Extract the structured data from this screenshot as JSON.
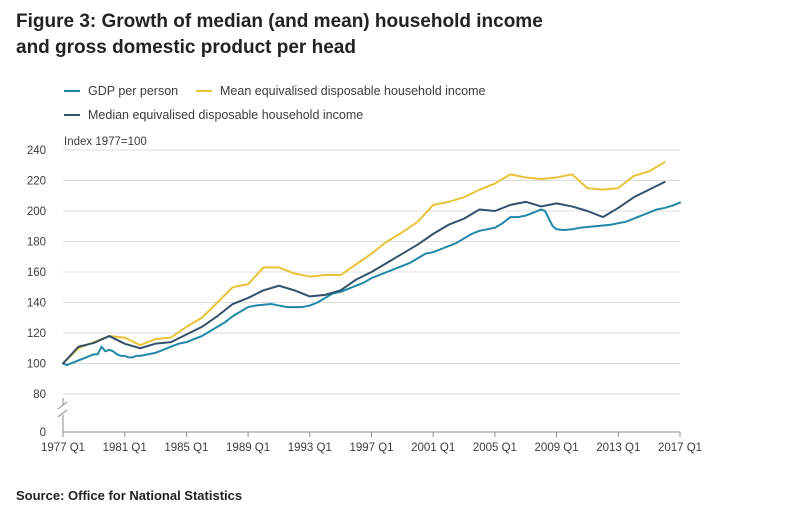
{
  "title_line1": "Figure 3: Growth of median (and mean) household income",
  "title_line2": "and gross domestic product per head",
  "source": "Source: Office for National Statistics",
  "colors": {
    "gdp": "#1f87a8",
    "mean": "#e8c239",
    "median": "#34516b",
    "grid": "#dcdcdc",
    "axis": "#8c8c8c"
  },
  "chart_data": {
    "type": "line",
    "ylabel": "Index 1977=100",
    "ylim": [
      0,
      240
    ],
    "axis_break": "between 0 and 80",
    "y_ticks": [
      0,
      80,
      100,
      120,
      140,
      160,
      180,
      200,
      220,
      240
    ],
    "x_range": [
      1977,
      2017
    ],
    "x_ticks": [
      "1977 Q1",
      "1981 Q1",
      "1985 Q1",
      "1989 Q1",
      "1993 Q1",
      "1997 Q1",
      "2001 Q1",
      "2005 Q1",
      "2009 Q1",
      "2013 Q1",
      "2017 Q1"
    ],
    "grid": true,
    "legend_position": "top",
    "series": [
      {
        "name": "GDP per person",
        "color_key": "gdp",
        "points": [
          [
            1977.0,
            100
          ],
          [
            1977.25,
            99
          ],
          [
            1977.5,
            100
          ],
          [
            1977.75,
            101
          ],
          [
            1978.0,
            102
          ],
          [
            1978.25,
            103
          ],
          [
            1978.5,
            104
          ],
          [
            1978.75,
            105
          ],
          [
            1979.0,
            106
          ],
          [
            1979.25,
            106
          ],
          [
            1979.5,
            111
          ],
          [
            1979.75,
            108
          ],
          [
            1980.0,
            109
          ],
          [
            1980.25,
            108
          ],
          [
            1980.5,
            106
          ],
          [
            1980.75,
            105
          ],
          [
            1981.0,
            105
          ],
          [
            1981.25,
            104
          ],
          [
            1981.5,
            104
          ],
          [
            1981.75,
            105
          ],
          [
            1982.0,
            105
          ],
          [
            1982.5,
            106
          ],
          [
            1983.0,
            107
          ],
          [
            1983.5,
            109
          ],
          [
            1984.0,
            111
          ],
          [
            1984.5,
            113
          ],
          [
            1985.0,
            114
          ],
          [
            1985.5,
            116
          ],
          [
            1986.0,
            118
          ],
          [
            1986.5,
            121
          ],
          [
            1987.0,
            124
          ],
          [
            1987.5,
            127
          ],
          [
            1988.0,
            131
          ],
          [
            1988.5,
            134
          ],
          [
            1989.0,
            137
          ],
          [
            1989.5,
            138
          ],
          [
            1990.0,
            138.5
          ],
          [
            1990.5,
            139
          ],
          [
            1991.0,
            138
          ],
          [
            1991.5,
            137
          ],
          [
            1992.0,
            137
          ],
          [
            1992.5,
            137
          ],
          [
            1993.0,
            138
          ],
          [
            1993.5,
            140
          ],
          [
            1994.0,
            143
          ],
          [
            1994.5,
            146
          ],
          [
            1995.0,
            147
          ],
          [
            1995.5,
            149
          ],
          [
            1996.0,
            151
          ],
          [
            1996.5,
            153
          ],
          [
            1997.0,
            156
          ],
          [
            1997.5,
            158
          ],
          [
            1998.0,
            160
          ],
          [
            1998.5,
            162
          ],
          [
            1999.0,
            164
          ],
          [
            1999.5,
            166
          ],
          [
            2000.0,
            169
          ],
          [
            2000.5,
            172
          ],
          [
            2001.0,
            173
          ],
          [
            2001.5,
            175
          ],
          [
            2002.0,
            177
          ],
          [
            2002.5,
            179
          ],
          [
            2003.0,
            182
          ],
          [
            2003.5,
            185
          ],
          [
            2004.0,
            187
          ],
          [
            2004.5,
            188
          ],
          [
            2005.0,
            189
          ],
          [
            2005.5,
            192
          ],
          [
            2006.0,
            196
          ],
          [
            2006.5,
            196
          ],
          [
            2007.0,
            197
          ],
          [
            2007.5,
            199
          ],
          [
            2008.0,
            201
          ],
          [
            2008.25,
            200
          ],
          [
            2008.5,
            195
          ],
          [
            2008.75,
            190
          ],
          [
            2009.0,
            188
          ],
          [
            2009.5,
            187.5
          ],
          [
            2010.0,
            188
          ],
          [
            2010.5,
            189
          ],
          [
            2011.0,
            189.5
          ],
          [
            2011.5,
            190
          ],
          [
            2012.0,
            190.5
          ],
          [
            2012.5,
            191
          ],
          [
            2013.0,
            192
          ],
          [
            2013.5,
            193
          ],
          [
            2014.0,
            195
          ],
          [
            2014.5,
            197
          ],
          [
            2015.0,
            199
          ],
          [
            2015.5,
            201
          ],
          [
            2016.0,
            202
          ],
          [
            2016.5,
            203.5
          ],
          [
            2017.0,
            205.5
          ]
        ]
      },
      {
        "name": "Mean equivalised disposable household income",
        "color_key": "mean",
        "points": [
          [
            1977,
            100
          ],
          [
            1978,
            110
          ],
          [
            1979,
            114
          ],
          [
            1980,
            118
          ],
          [
            1981,
            117
          ],
          [
            1982,
            112
          ],
          [
            1983,
            116
          ],
          [
            1984,
            117
          ],
          [
            1985,
            124
          ],
          [
            1986,
            130
          ],
          [
            1987,
            140
          ],
          [
            1988,
            150
          ],
          [
            1989,
            152
          ],
          [
            1990,
            163
          ],
          [
            1991,
            163
          ],
          [
            1992,
            159
          ],
          [
            1993,
            157
          ],
          [
            1994,
            158
          ],
          [
            1995,
            158
          ],
          [
            1996,
            165
          ],
          [
            1997,
            172
          ],
          [
            1998,
            180
          ],
          [
            1999,
            186
          ],
          [
            2000,
            193
          ],
          [
            2001,
            204
          ],
          [
            2002,
            206
          ],
          [
            2003,
            209
          ],
          [
            2004,
            214
          ],
          [
            2005,
            218
          ],
          [
            2006,
            224
          ],
          [
            2007,
            222
          ],
          [
            2008,
            221
          ],
          [
            2009,
            222
          ],
          [
            2010,
            224
          ],
          [
            2011,
            215
          ],
          [
            2012,
            214
          ],
          [
            2013,
            215
          ],
          [
            2014,
            223
          ],
          [
            2015,
            226
          ],
          [
            2016,
            232
          ]
        ]
      },
      {
        "name": "Median equivalised disposable household income",
        "color_key": "median",
        "points": [
          [
            1977,
            100
          ],
          [
            1978,
            111
          ],
          [
            1979,
            113.5
          ],
          [
            1980,
            118
          ],
          [
            1981,
            113
          ],
          [
            1982,
            110
          ],
          [
            1983,
            113
          ],
          [
            1984,
            114
          ],
          [
            1985,
            119
          ],
          [
            1986,
            124
          ],
          [
            1987,
            131
          ],
          [
            1988,
            139
          ],
          [
            1989,
            143
          ],
          [
            1990,
            148
          ],
          [
            1991,
            151
          ],
          [
            1992,
            148
          ],
          [
            1993,
            144
          ],
          [
            1994,
            145
          ],
          [
            1995,
            148
          ],
          [
            1996,
            155
          ],
          [
            1997,
            160
          ],
          [
            1998,
            166
          ],
          [
            1999,
            172
          ],
          [
            2000,
            178
          ],
          [
            2001,
            185
          ],
          [
            2002,
            191
          ],
          [
            2003,
            195
          ],
          [
            2004,
            201
          ],
          [
            2005,
            200
          ],
          [
            2006,
            204
          ],
          [
            2007,
            206
          ],
          [
            2008,
            203
          ],
          [
            2009,
            205
          ],
          [
            2010,
            203
          ],
          [
            2011,
            200
          ],
          [
            2012,
            196
          ],
          [
            2013,
            202
          ],
          [
            2014,
            209
          ],
          [
            2015,
            214
          ],
          [
            2016,
            219
          ]
        ]
      }
    ]
  }
}
